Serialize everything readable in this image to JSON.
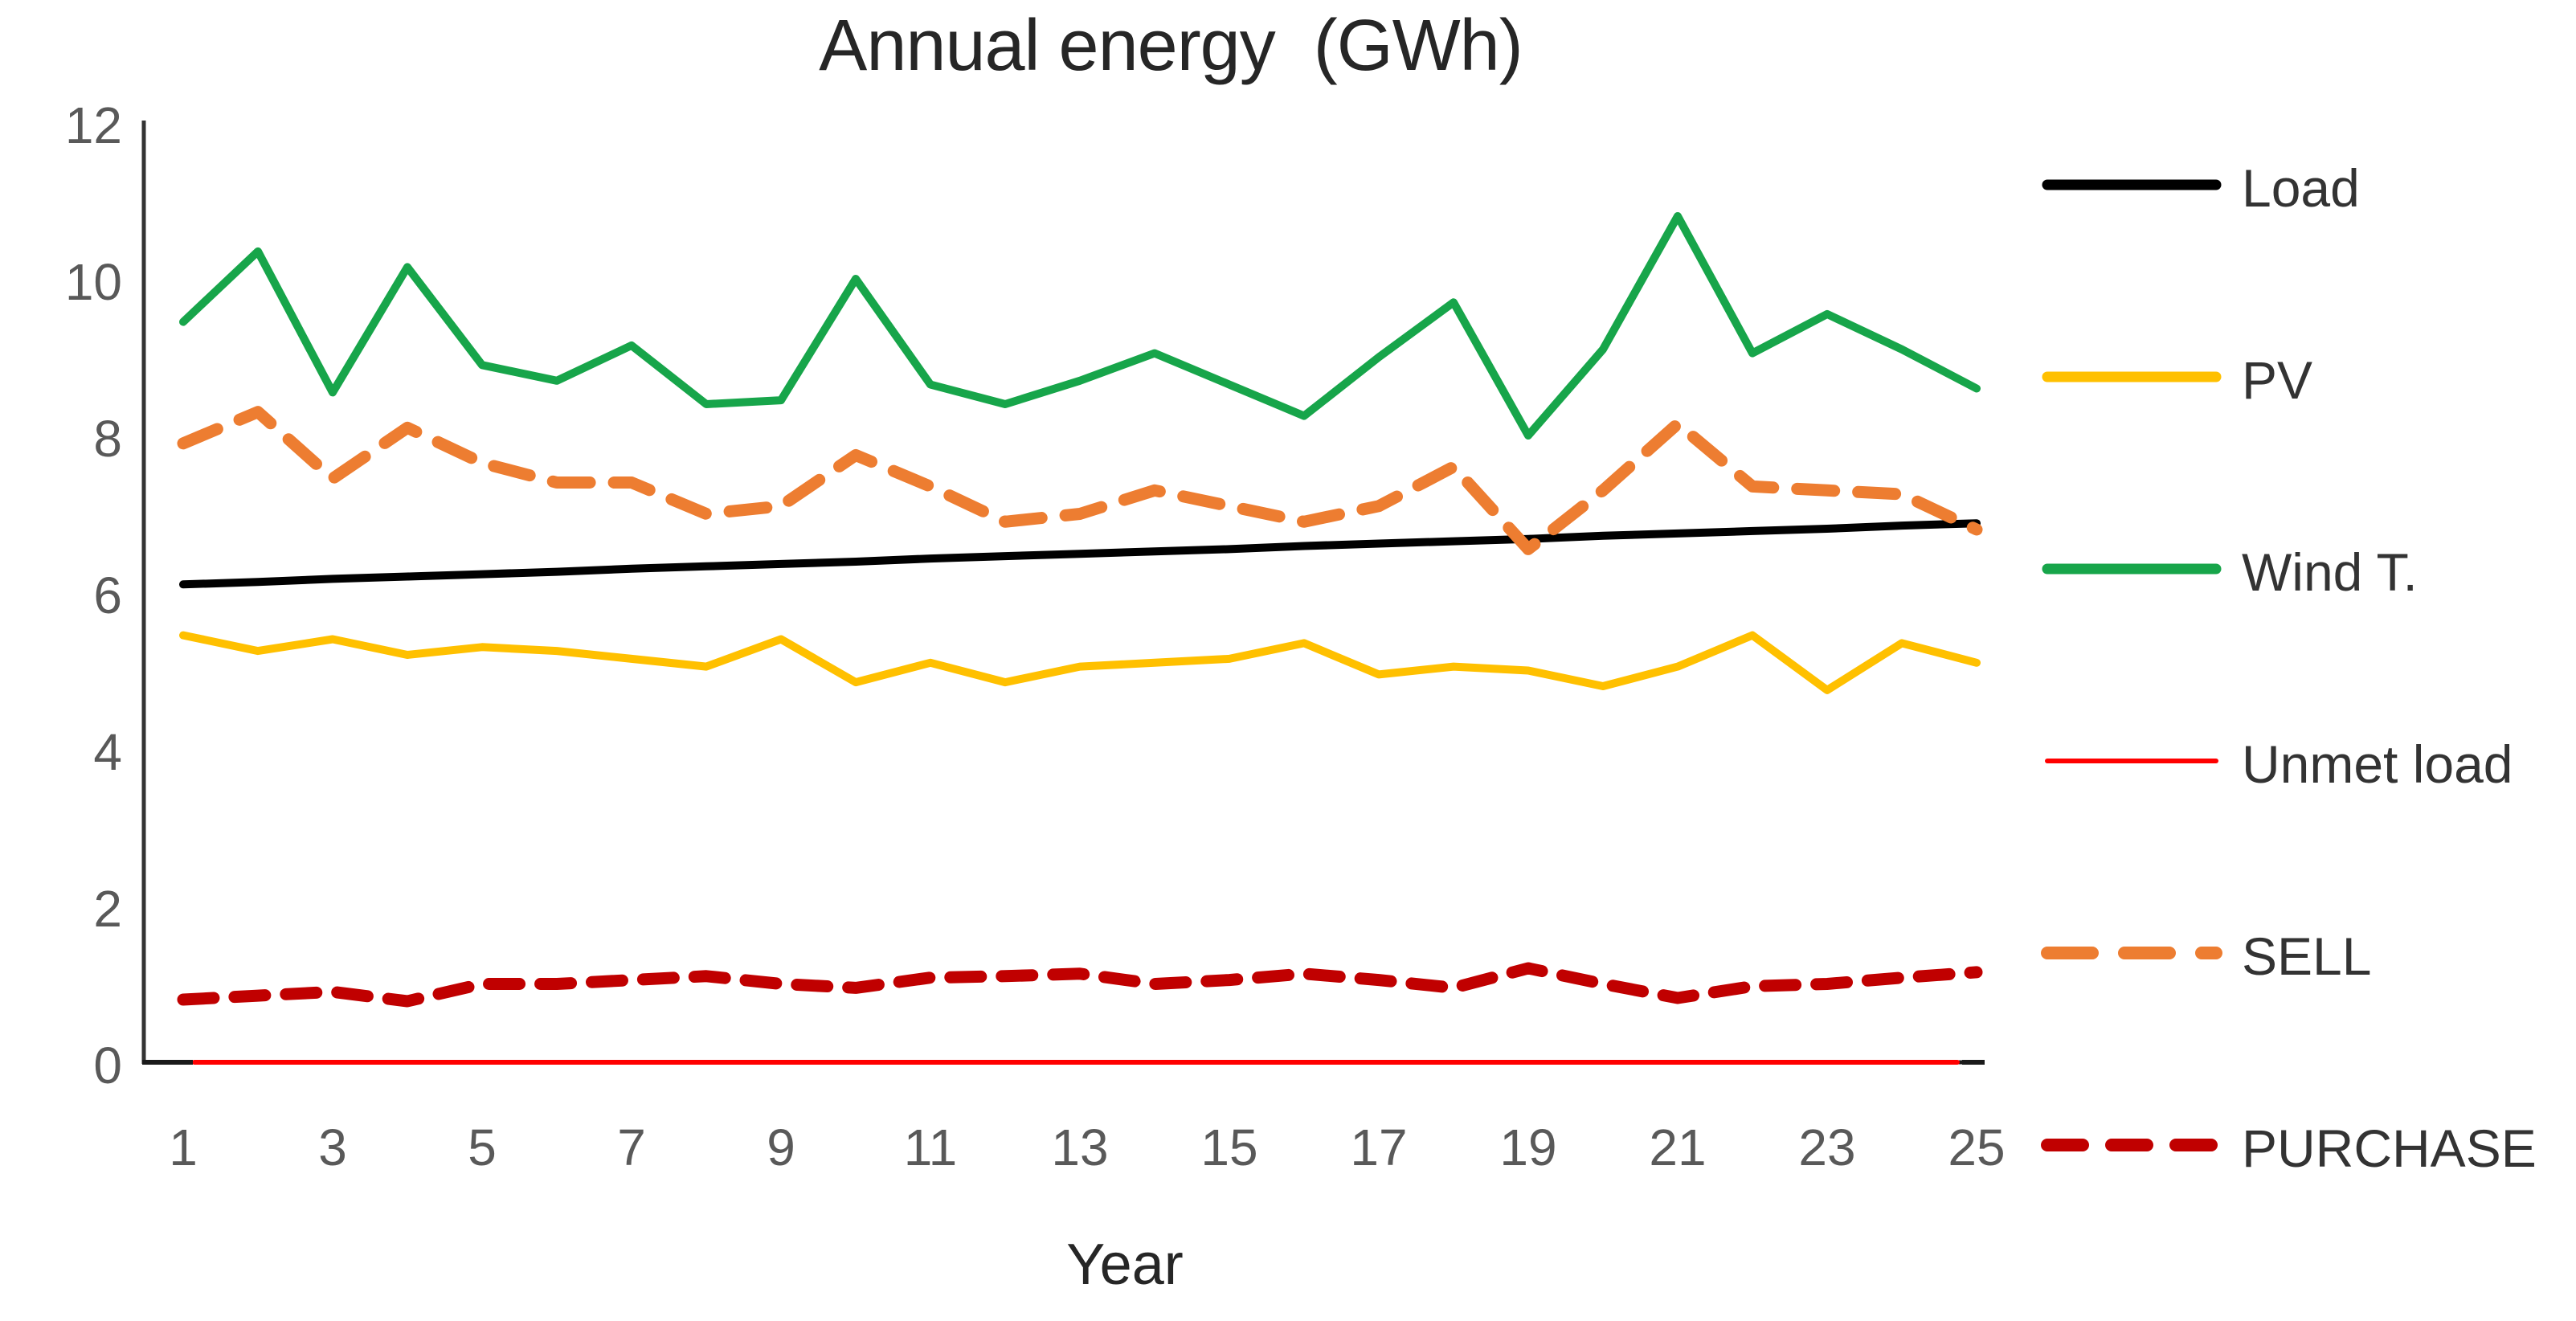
{
  "chart_data": {
    "type": "line",
    "title": "Annual energy  (GWh)",
    "xlabel": "Year",
    "ylabel": "",
    "x": [
      1,
      2,
      3,
      4,
      5,
      6,
      7,
      8,
      9,
      10,
      11,
      12,
      13,
      14,
      15,
      16,
      17,
      18,
      19,
      20,
      21,
      22,
      23,
      24,
      25
    ],
    "x_tick_labels": [
      1,
      3,
      5,
      7,
      9,
      11,
      13,
      15,
      17,
      19,
      21,
      23,
      25
    ],
    "ylim": [
      0,
      12
    ],
    "yticks": [
      0,
      2,
      4,
      6,
      8,
      10,
      12
    ],
    "grid": false,
    "legend_position": "right",
    "axis_color": "#333333",
    "tick_color": "#595959",
    "text_color": "#333333",
    "series": [
      {
        "name": "Load",
        "color": "#000000",
        "style": "solid",
        "dash_pattern": null,
        "values": [
          6.1,
          6.13,
          6.17,
          6.2,
          6.23,
          6.26,
          6.3,
          6.33,
          6.36,
          6.39,
          6.43,
          6.46,
          6.49,
          6.52,
          6.55,
          6.59,
          6.62,
          6.65,
          6.68,
          6.72,
          6.75,
          6.78,
          6.81,
          6.85,
          6.88
        ]
      },
      {
        "name": "PV",
        "color": "#FFC000",
        "style": "solid",
        "dash_pattern": null,
        "values": [
          5.45,
          5.25,
          5.4,
          5.2,
          5.3,
          5.25,
          5.15,
          5.05,
          5.4,
          4.85,
          5.1,
          4.85,
          5.05,
          5.1,
          5.15,
          5.35,
          4.95,
          5.05,
          5.0,
          4.8,
          5.05,
          5.45,
          4.75,
          5.35,
          5.1
        ]
      },
      {
        "name": "Wind T.",
        "color": "#17A54A",
        "style": "solid",
        "dash_pattern": null,
        "values": [
          9.45,
          10.35,
          8.55,
          10.15,
          8.9,
          8.7,
          9.15,
          8.4,
          8.45,
          10.0,
          8.65,
          8.4,
          8.7,
          9.05,
          8.65,
          8.25,
          9.0,
          9.7,
          8.0,
          9.1,
          10.8,
          9.05,
          9.55,
          9.1,
          8.6
        ]
      },
      {
        "name": "Unmet load",
        "color": "#FF0000",
        "style": "thin",
        "dash_pattern": null,
        "values": [
          0,
          0,
          0,
          0,
          0,
          0,
          0,
          0,
          0,
          0,
          0,
          0,
          0,
          0,
          0,
          0,
          0,
          0,
          0,
          0,
          0,
          0,
          0,
          0,
          0
        ]
      },
      {
        "name": "SELL",
        "color": "#ED7D31",
        "style": "dashed",
        "dash_pattern": [
          46,
          30
        ],
        "values": [
          7.9,
          8.3,
          7.45,
          8.1,
          7.65,
          7.4,
          7.4,
          7.0,
          7.1,
          7.75,
          7.35,
          6.9,
          7.0,
          7.3,
          7.1,
          6.9,
          7.1,
          7.6,
          6.55,
          7.3,
          8.15,
          7.35,
          7.3,
          7.25,
          6.8
        ]
      },
      {
        "name": "PURCHASE",
        "color": "#C00000",
        "style": "dashed",
        "dash_pattern": [
          38,
          26
        ],
        "values": [
          0.8,
          0.85,
          0.9,
          0.78,
          1.0,
          1.0,
          1.05,
          1.1,
          1.0,
          0.95,
          1.08,
          1.1,
          1.13,
          1.0,
          1.05,
          1.13,
          1.05,
          0.95,
          1.2,
          1.0,
          0.82,
          0.97,
          1.0,
          1.08,
          1.15
        ]
      }
    ]
  }
}
